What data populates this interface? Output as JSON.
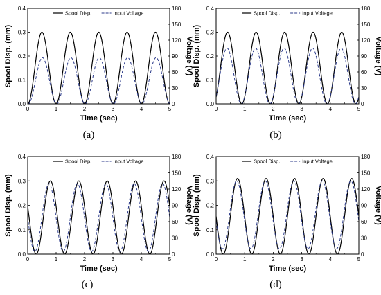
{
  "chart_data": [
    {
      "type": "line",
      "label": "(a)",
      "xlabel": "Time (sec)",
      "ylabel": "Spool Disp. (mm)",
      "y2label": "Voltage (V)",
      "xlim": [
        0,
        5
      ],
      "ylim": [
        0,
        0.4
      ],
      "y2lim": [
        0,
        180
      ],
      "xticks": [
        0,
        1,
        2,
        3,
        4,
        5
      ],
      "yticks": [
        0.0,
        0.1,
        0.2,
        0.3,
        0.4
      ],
      "y2ticks": [
        0,
        30,
        60,
        90,
        120,
        150,
        180
      ],
      "legend_position": "top",
      "period_sec": 1,
      "series": [
        {
          "name": "Spool Disp.",
          "axis": "left",
          "style": "solid",
          "color": "#000000",
          "peak": 0.3,
          "min": 0.0,
          "phase_sec": 0.0
        },
        {
          "name": "Input Voltage",
          "axis": "right",
          "style": "dashed",
          "color": "#2b3a8a",
          "peak": 87,
          "min": 0,
          "phase_sec": 0.02
        }
      ]
    },
    {
      "type": "line",
      "label": "(b)",
      "xlabel": "Time (sec)",
      "ylabel": "Spool Disp. (mm)",
      "y2label": "Voltage (V)",
      "xlim": [
        0,
        5
      ],
      "ylim": [
        0,
        0.4
      ],
      "y2lim": [
        0,
        180
      ],
      "xticks": [
        0,
        1,
        2,
        3,
        4,
        5
      ],
      "yticks": [
        0.0,
        0.1,
        0.2,
        0.3,
        0.4
      ],
      "y2ticks": [
        0,
        30,
        60,
        90,
        120,
        150,
        180
      ],
      "legend_position": "top",
      "period_sec": 1,
      "series": [
        {
          "name": "Spool Disp.",
          "axis": "left",
          "style": "solid",
          "color": "#000000",
          "peak": 0.3,
          "min": 0.0,
          "phase_sec": -0.1
        },
        {
          "name": "Input Voltage",
          "axis": "right",
          "style": "dashed",
          "color": "#2b3a8a",
          "peak": 105,
          "min": 0,
          "phase_sec": -0.12
        }
      ]
    },
    {
      "type": "line",
      "label": "(c)",
      "xlabel": "Time (sec)",
      "ylabel": "Spool Disp. (mm)",
      "y2label": "Voltage (V)",
      "xlim": [
        0,
        5
      ],
      "ylim": [
        0,
        0.4
      ],
      "y2lim": [
        0,
        180
      ],
      "xticks": [
        0,
        1,
        2,
        3,
        4,
        5
      ],
      "yticks": [
        0.0,
        0.1,
        0.2,
        0.3,
        0.4
      ],
      "y2ticks": [
        0,
        30,
        60,
        90,
        120,
        150,
        180
      ],
      "legend_position": "top",
      "period_sec": 1,
      "series": [
        {
          "name": "Spool Disp.",
          "axis": "left",
          "style": "solid",
          "color": "#000000",
          "peak": 0.3,
          "min": 0.0,
          "phase_sec": 0.3
        },
        {
          "name": "Input Voltage",
          "axis": "right",
          "style": "dashed",
          "color": "#2b3a8a",
          "peak": 130,
          "min": 5,
          "phase_sec": 0.25
        }
      ]
    },
    {
      "type": "line",
      "label": "(d)",
      "xlabel": "Time (sec)",
      "ylabel": "Spool Disp. (mm)",
      "y2label": "Voltage (V)",
      "xlim": [
        0,
        5
      ],
      "ylim": [
        0,
        0.4
      ],
      "y2lim": [
        0,
        180
      ],
      "xticks": [
        0,
        1,
        2,
        3,
        4,
        5
      ],
      "yticks": [
        0.0,
        0.1,
        0.2,
        0.3,
        0.4
      ],
      "y2ticks": [
        0,
        30,
        60,
        90,
        120,
        150,
        180
      ],
      "legend_position": "top",
      "period_sec": 1,
      "series": [
        {
          "name": "Spool Disp.",
          "axis": "left",
          "style": "solid",
          "color": "#000000",
          "peak": 0.31,
          "min": 0.0,
          "phase_sec": 0.25
        },
        {
          "name": "Input Voltage",
          "axis": "right",
          "style": "dashed",
          "color": "#2b3a8a",
          "peak": 135,
          "min": 10,
          "phase_sec": 0.22
        }
      ]
    }
  ]
}
